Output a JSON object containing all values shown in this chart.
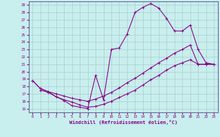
{
  "xlabel": "Windchill (Refroidissement éolien,°C)",
  "xlim": [
    -0.5,
    23.5
  ],
  "ylim": [
    14.5,
    29.5
  ],
  "xticks": [
    0,
    1,
    2,
    3,
    4,
    5,
    6,
    7,
    8,
    9,
    10,
    11,
    12,
    13,
    14,
    15,
    16,
    17,
    18,
    19,
    20,
    21,
    22,
    23
  ],
  "yticks": [
    15,
    16,
    17,
    18,
    19,
    20,
    21,
    22,
    23,
    24,
    25,
    26,
    27,
    28,
    29
  ],
  "bg_color": "#c8eeee",
  "grid_color": "#aacccc",
  "line_color": "#880088",
  "curve1_x": [
    0,
    1,
    2,
    3,
    4,
    5,
    6,
    7,
    8,
    9,
    10,
    11,
    12,
    13,
    14,
    15,
    16,
    17,
    18,
    19,
    20,
    21,
    22,
    23
  ],
  "curve1_y": [
    18.8,
    17.7,
    17.3,
    16.6,
    16.1,
    15.4,
    15.2,
    15.0,
    19.5,
    16.2,
    23.0,
    23.2,
    25.1,
    28.0,
    28.7,
    29.2,
    28.6,
    27.2,
    25.5,
    25.5,
    26.3,
    23.0,
    21.2,
    21.0
  ],
  "curve2_x": [
    1,
    2,
    3,
    4,
    5,
    6,
    7,
    8,
    9,
    10,
    11,
    12,
    13,
    14,
    15,
    16,
    17,
    18,
    19,
    20,
    21,
    22,
    23
  ],
  "curve2_y": [
    17.5,
    17.2,
    16.6,
    16.2,
    15.9,
    15.5,
    15.2,
    15.3,
    15.6,
    16.0,
    16.5,
    17.0,
    17.5,
    18.2,
    18.9,
    19.5,
    20.2,
    20.8,
    21.2,
    21.6,
    21.0,
    21.0,
    21.0
  ],
  "curve3_x": [
    0,
    1,
    2,
    3,
    4,
    5,
    6,
    7,
    8,
    9,
    10,
    11,
    12,
    13,
    14,
    15,
    16,
    17,
    18,
    19,
    20,
    21,
    22,
    23
  ],
  "curve3_y": [
    18.8,
    17.7,
    17.3,
    17.0,
    16.7,
    16.4,
    16.2,
    16.0,
    16.3,
    16.7,
    17.2,
    17.8,
    18.5,
    19.1,
    19.8,
    20.5,
    21.2,
    21.8,
    22.5,
    23.0,
    23.6,
    21.0,
    21.0,
    21.0
  ]
}
